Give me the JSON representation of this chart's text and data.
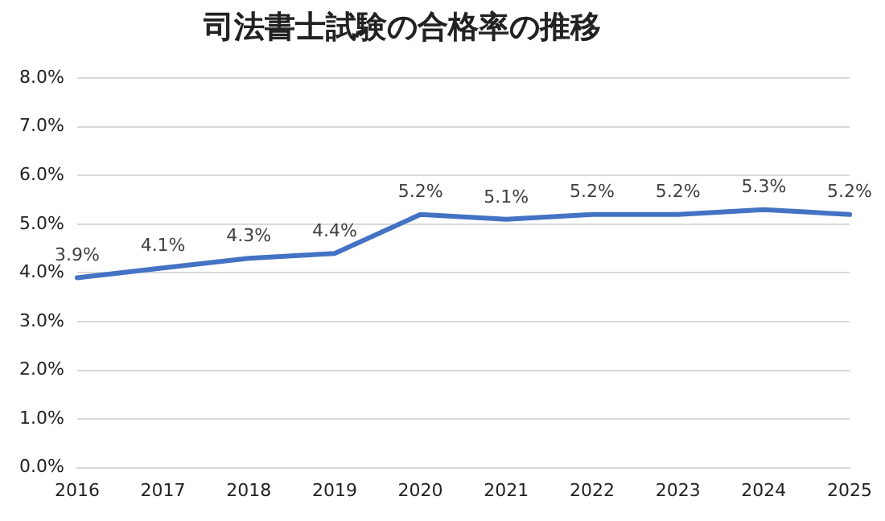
{
  "chart_data": {
    "type": "line",
    "title": "司法書士試験の合格率の推移",
    "categories": [
      "2016",
      "2017",
      "2018",
      "2019",
      "2020",
      "2021",
      "2022",
      "2023",
      "2024",
      "2025"
    ],
    "series": [
      {
        "color": "#4472c4",
        "values": [
          3.9,
          4.1,
          4.3,
          4.4,
          5.2,
          5.1,
          5.2,
          5.2,
          5.3,
          5.2
        ],
        "value_labels": [
          "3.9%",
          "4.1%",
          "4.3%",
          "4.4%",
          "5.2%",
          "5.1%",
          "5.2%",
          "5.2%",
          "5.3%",
          "5.2%"
        ]
      }
    ],
    "ylim": [
      0,
      8
    ],
    "yticks": [
      {
        "value": 0,
        "label": "0.0%"
      },
      {
        "value": 1,
        "label": "1.0%"
      },
      {
        "value": 2,
        "label": "2.0%"
      },
      {
        "value": 3,
        "label": "3.0%"
      },
      {
        "value": 4,
        "label": "4.0%"
      },
      {
        "value": 5,
        "label": "5.0%"
      },
      {
        "value": 6,
        "label": "6.0%"
      },
      {
        "value": 7,
        "label": "7.0%"
      },
      {
        "value": 8,
        "label": "8.0%"
      }
    ],
    "grid": "y",
    "legend": false,
    "marker": "none",
    "line_style": "solid"
  }
}
